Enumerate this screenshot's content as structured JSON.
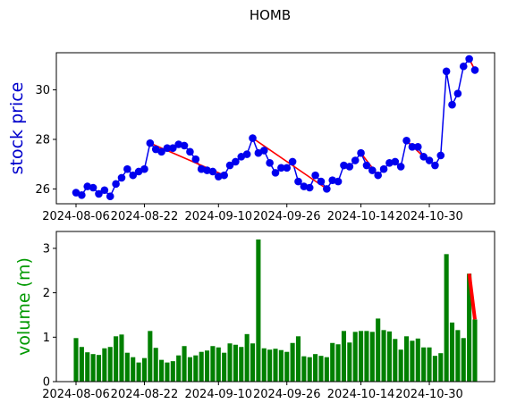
{
  "chart_data": [
    {
      "type": "line",
      "title": "HOMB",
      "ylabel": "stock price",
      "ylabel_color": "#0000cc",
      "marker_color": "#0000ee",
      "trend_color": "#ff0000",
      "x_tick_labels": [
        "2024-08-06",
        "2024-08-22",
        "2024-09-10",
        "2024-09-26",
        "2024-10-14",
        "2024-10-30"
      ],
      "y_tick_labels": [
        "26",
        "28",
        "30"
      ],
      "ylim": [
        25.4,
        31.5
      ],
      "series": [
        {
          "values": [
            25.85,
            25.75,
            26.1,
            26.05,
            25.8,
            25.95,
            25.7,
            26.2,
            26.45,
            26.8,
            26.55,
            26.7,
            26.8,
            27.85,
            27.6,
            27.5,
            27.65,
            27.65,
            27.8,
            27.75,
            27.5,
            27.2,
            26.8,
            26.75,
            26.7,
            26.5,
            26.55,
            26.95,
            27.1,
            27.3,
            27.4,
            28.05,
            27.45,
            27.55,
            27.05,
            26.65,
            26.85,
            26.85,
            27.1,
            26.3,
            26.1,
            26.05,
            26.55,
            26.3,
            26.0,
            26.35,
            26.3,
            26.95,
            26.9,
            27.15,
            27.45,
            26.95,
            26.75,
            26.55,
            26.8,
            27.05,
            27.1,
            26.9,
            27.95,
            27.7,
            27.7,
            27.3,
            27.15,
            26.95,
            27.35,
            30.75,
            29.4,
            29.85,
            30.95,
            31.25,
            30.8
          ]
        }
      ],
      "trend_segments": [
        [
          13,
          26
        ],
        [
          31,
          44
        ],
        [
          50,
          53
        ],
        [
          58,
          61
        ],
        [
          69,
          70
        ]
      ]
    },
    {
      "type": "bar",
      "ylabel": "volume (m)",
      "ylabel_color": "#009900",
      "bar_color": "#008000",
      "trend_color": "#ff0000",
      "x_tick_labels": [
        "2024-08-06",
        "2024-08-22",
        "2024-09-10",
        "2024-09-26",
        "2024-10-14",
        "2024-10-30"
      ],
      "y_tick_labels": [
        "0",
        "1",
        "2",
        "3"
      ],
      "ylim": [
        0,
        3.38
      ],
      "values": [
        0.98,
        0.78,
        0.66,
        0.62,
        0.6,
        0.75,
        0.78,
        1.02,
        1.06,
        0.65,
        0.55,
        0.43,
        0.53,
        1.14,
        0.76,
        0.49,
        0.43,
        0.46,
        0.59,
        0.8,
        0.55,
        0.59,
        0.67,
        0.7,
        0.8,
        0.77,
        0.65,
        0.86,
        0.83,
        0.78,
        1.07,
        0.86,
        3.2,
        0.75,
        0.72,
        0.74,
        0.71,
        0.67,
        0.87,
        1.02,
        0.57,
        0.55,
        0.62,
        0.58,
        0.55,
        0.87,
        0.84,
        1.14,
        0.88,
        1.12,
        1.14,
        1.14,
        1.12,
        1.42,
        1.16,
        1.13,
        0.96,
        0.72,
        1.02,
        0.92,
        0.97,
        0.77,
        0.77,
        0.58,
        0.64,
        2.87,
        1.33,
        1.16,
        0.98,
        2.43,
        1.4
      ],
      "trend_segments": [
        [
          69,
          70
        ]
      ]
    }
  ]
}
